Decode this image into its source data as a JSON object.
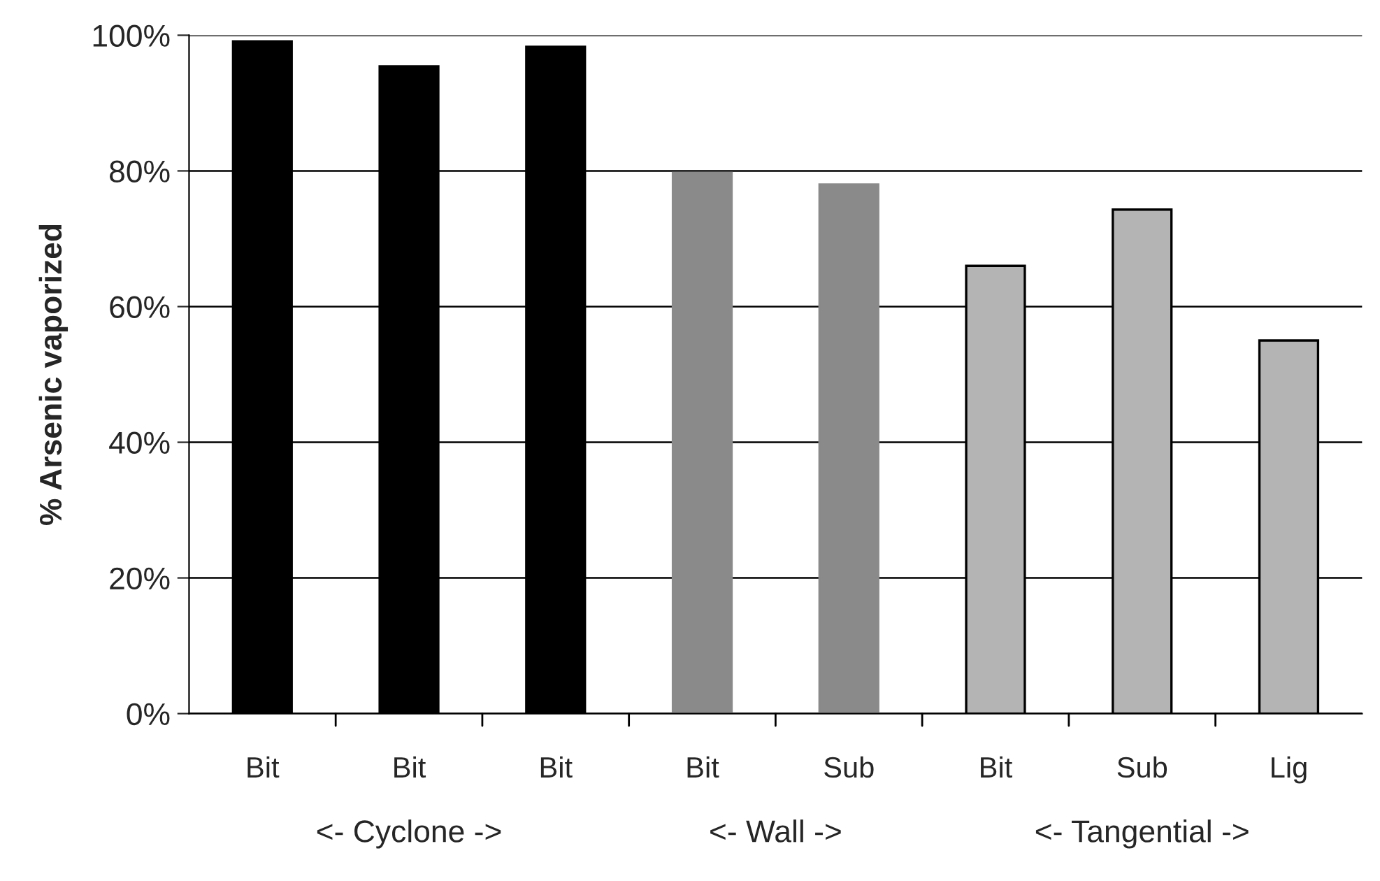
{
  "chart_data": {
    "type": "bar",
    "ylabel": "% Arsenic vaporized",
    "categories": [
      "Bit",
      "Bit",
      "Bit",
      "Bit",
      "Sub",
      "Bit",
      "Sub",
      "Lig"
    ],
    "values": [
      99.1,
      95.4,
      98.3,
      79.7,
      78,
      66,
      74.3,
      55
    ],
    "colors": [
      "#000000",
      "#000000",
      "#000000",
      "#8a8a8a",
      "#8a8a8a",
      "#b4b4b4",
      "#b4b4b4",
      "#b4b4b4"
    ],
    "ylim": [
      0,
      100
    ],
    "yticks": [
      {
        "value": 0,
        "label": "0%"
      },
      {
        "value": 20,
        "label": "20%"
      },
      {
        "value": 40,
        "label": "40%"
      },
      {
        "value": 60,
        "label": "60%"
      },
      {
        "value": 80,
        "label": "80%"
      },
      {
        "value": 100,
        "label": "100%"
      }
    ],
    "grid": "y",
    "annotations": [
      "<- Cyclone ->",
      "<- Wall ->",
      "<- Tangential ->"
    ]
  }
}
